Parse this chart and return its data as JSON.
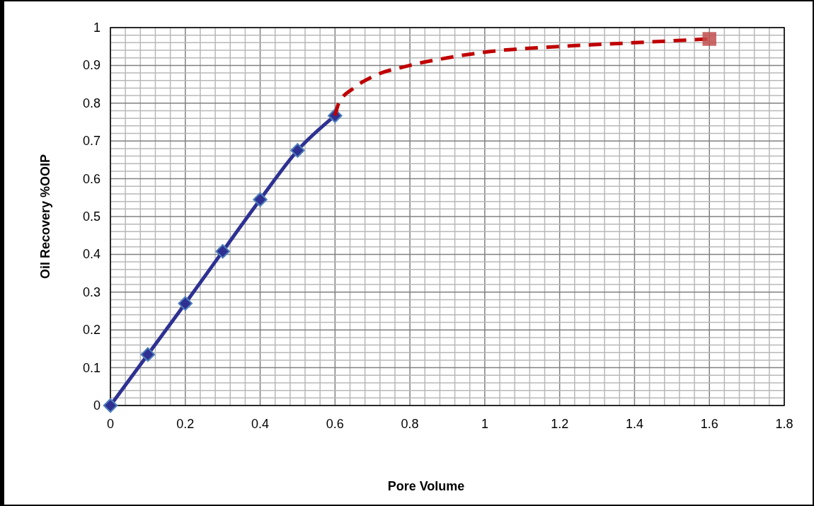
{
  "chart_data": {
    "type": "line",
    "xlabel": "Pore Volume",
    "ylabel": "Oil Recovery %OOIP",
    "xlim": [
      0,
      1.8
    ],
    "ylim": [
      0,
      1
    ],
    "xticks": [
      0,
      {
        "value": 0.04,
        "label": null
      },
      {
        "value": 0.08,
        "label": null
      },
      {
        "value": 0.12,
        "label": null
      },
      {
        "value": 0.16,
        "label": null
      },
      0.2,
      {
        "value": 0.24,
        "label": null
      },
      {
        "value": 0.28,
        "label": null
      },
      {
        "value": 0.32,
        "label": null
      },
      {
        "value": 0.36,
        "label": null
      },
      0.4,
      {
        "value": 0.44,
        "label": null
      },
      {
        "value": 0.48,
        "label": null
      },
      {
        "value": 0.52,
        "label": null
      },
      {
        "value": 0.56,
        "label": null
      },
      0.6,
      {
        "value": 0.64,
        "label": null
      },
      {
        "value": 0.68,
        "label": null
      },
      {
        "value": 0.72,
        "label": null
      },
      {
        "value": 0.76,
        "label": null
      },
      0.8,
      {
        "value": 0.84,
        "label": null
      },
      {
        "value": 0.88,
        "label": null
      },
      {
        "value": 0.92,
        "label": null
      },
      {
        "value": 0.96,
        "label": null
      },
      1,
      {
        "value": 1.04,
        "label": null
      },
      {
        "value": 1.08,
        "label": null
      },
      {
        "value": 1.12,
        "label": null
      },
      {
        "value": 1.16,
        "label": null
      },
      1.2,
      {
        "value": 1.24,
        "label": null
      },
      {
        "value": 1.28,
        "label": null
      },
      {
        "value": 1.32,
        "label": null
      },
      {
        "value": 1.36,
        "label": null
      },
      1.4,
      {
        "value": 1.44,
        "label": null
      },
      {
        "value": 1.48,
        "label": null
      },
      {
        "value": 1.52,
        "label": null
      },
      {
        "value": 1.56,
        "label": null
      },
      1.6,
      {
        "value": 1.64,
        "label": null
      },
      {
        "value": 1.68,
        "label": null
      },
      {
        "value": 1.72,
        "label": null
      },
      {
        "value": 1.76,
        "label": null
      },
      1.8
    ],
    "yticks": [
      0,
      {
        "value": 0.02,
        "label": null
      },
      {
        "value": 0.04,
        "label": null
      },
      {
        "value": 0.06,
        "label": null
      },
      {
        "value": 0.08,
        "label": null
      },
      0.1,
      {
        "value": 0.12,
        "label": null
      },
      {
        "value": 0.14,
        "label": null
      },
      {
        "value": 0.16,
        "label": null
      },
      {
        "value": 0.18,
        "label": null
      },
      0.2,
      {
        "value": 0.22,
        "label": null
      },
      {
        "value": 0.24,
        "label": null
      },
      {
        "value": 0.26,
        "label": null
      },
      {
        "value": 0.28,
        "label": null
      },
      0.3,
      {
        "value": 0.32,
        "label": null
      },
      {
        "value": 0.34,
        "label": null
      },
      {
        "value": 0.36,
        "label": null
      },
      {
        "value": 0.38,
        "label": null
      },
      0.4,
      {
        "value": 0.42,
        "label": null
      },
      {
        "value": 0.44,
        "label": null
      },
      {
        "value": 0.46,
        "label": null
      },
      {
        "value": 0.48,
        "label": null
      },
      0.5,
      {
        "value": 0.52,
        "label": null
      },
      {
        "value": 0.54,
        "label": null
      },
      {
        "value": 0.56,
        "label": null
      },
      {
        "value": 0.58,
        "label": null
      },
      0.6,
      {
        "value": 0.62,
        "label": null
      },
      {
        "value": 0.64,
        "label": null
      },
      {
        "value": 0.66,
        "label": null
      },
      {
        "value": 0.68,
        "label": null
      },
      0.7,
      {
        "value": 0.72,
        "label": null
      },
      {
        "value": 0.74,
        "label": null
      },
      {
        "value": 0.76,
        "label": null
      },
      {
        "value": 0.78,
        "label": null
      },
      0.8,
      {
        "value": 0.82,
        "label": null
      },
      {
        "value": 0.84,
        "label": null
      },
      {
        "value": 0.86,
        "label": null
      },
      {
        "value": 0.88,
        "label": null
      },
      0.9,
      {
        "value": 0.92,
        "label": null
      },
      {
        "value": 0.94,
        "label": null
      },
      {
        "value": 0.96,
        "label": null
      },
      {
        "value": 0.98,
        "label": null
      },
      1
    ],
    "grid": true,
    "series": [
      {
        "type": "line",
        "color": "#2e3192",
        "marker": "diamond",
        "line_style": "solid",
        "x": [
          0,
          0.1,
          0.2,
          0.3,
          0.4,
          0.5,
          0.6
        ],
        "values": [
          0,
          0.135,
          0.27,
          0.408,
          0.545,
          0.675,
          0.767
        ]
      },
      {
        "type": "line",
        "color": "#c00000",
        "marker": "none",
        "line_style": "dashed",
        "x": [
          0.6,
          0.61,
          0.65,
          0.7,
          0.8,
          0.9,
          1.0,
          1.2,
          1.4,
          1.6
        ],
        "values": [
          0.767,
          0.8,
          0.84,
          0.87,
          0.9,
          0.92,
          0.935,
          0.95,
          0.96,
          0.97
        ]
      },
      {
        "type": "scatter",
        "color": "#c0504d",
        "marker": "square",
        "x": [
          1.6
        ],
        "values": [
          0.97
        ]
      }
    ]
  }
}
